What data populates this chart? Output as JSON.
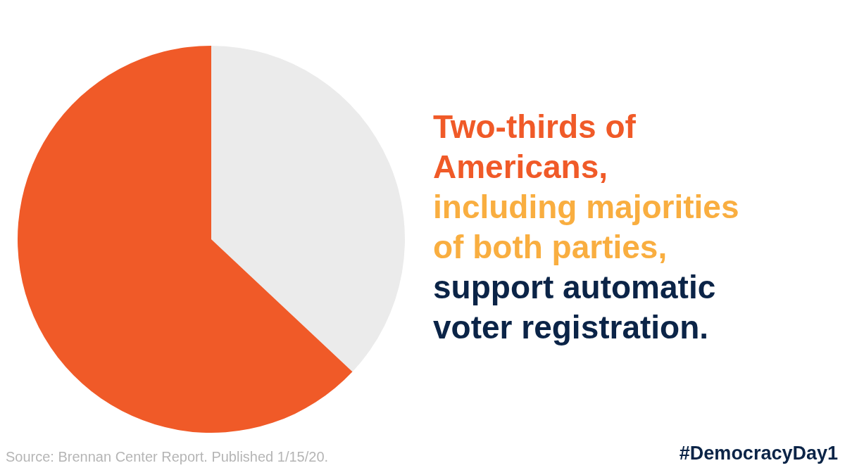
{
  "chart_data": {
    "type": "pie",
    "title": "Two-thirds of\nAmericans,",
    "subtitle": "including majorities\nof both parties,",
    "categories": [
      null,
      null
    ],
    "values": [
      37,
      63
    ],
    "colors": [
      "#ebebeb",
      "#f05a28"
    ],
    "annotations": [
      "support automatic\nvoter registration.",
      "#DemocracyDay1",
      "Source: Brennan Center Report. Published 1/15/20."
    ]
  }
}
